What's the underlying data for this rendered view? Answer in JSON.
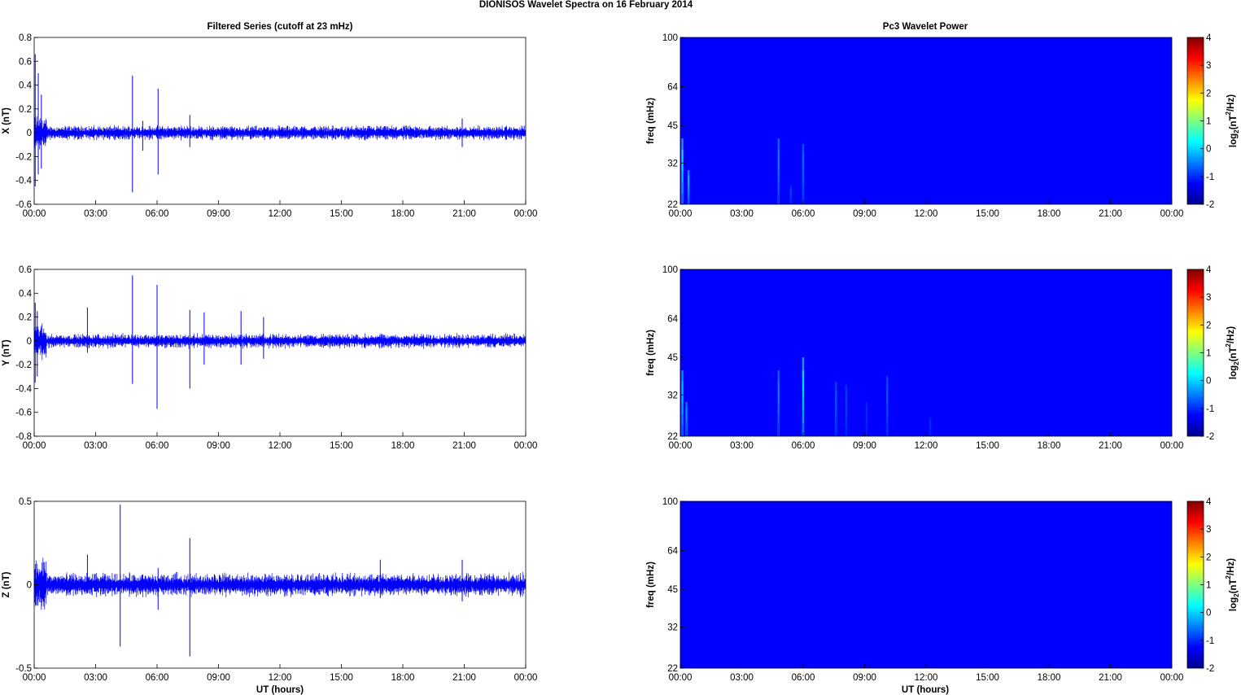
{
  "figure": {
    "suptitle": "DIONISOS Wavelet Spectra on 16 February  2014",
    "left_title": "Filtered Series (cutoff at 23 mHz)",
    "right_title": "Pc3 Wavelet Power",
    "xlabel": "UT (hours)"
  },
  "chart_data": [
    {
      "type": "line",
      "ylabel": "X (nT)",
      "x_ticks": [
        "00:00",
        "03:00",
        "06:00",
        "09:00",
        "12:00",
        "15:00",
        "18:00",
        "21:00",
        "00:00"
      ],
      "x_range_hours": [
        0,
        24
      ],
      "y_ticks": [
        "0.8",
        "0.6",
        "0.4",
        "0.2",
        "0",
        "-0.2",
        "-0.4",
        "-0.6"
      ],
      "ylim": [
        -0.6,
        0.8
      ],
      "color": "#0000ff",
      "noise_amplitude_nT": 0.03,
      "spikes": [
        {
          "t": 0.05,
          "min": -0.45,
          "max": 0.66
        },
        {
          "t": 0.2,
          "min": -0.35,
          "max": 0.5
        },
        {
          "t": 0.35,
          "min": -0.3,
          "max": 0.32
        },
        {
          "t": 4.8,
          "min": -0.5,
          "max": 0.48
        },
        {
          "t": 5.3,
          "min": -0.15,
          "max": 0.1
        },
        {
          "t": 6.05,
          "min": -0.35,
          "max": 0.37
        },
        {
          "t": 7.6,
          "min": -0.12,
          "max": 0.15
        },
        {
          "t": 20.9,
          "min": -0.12,
          "max": 0.12
        }
      ]
    },
    {
      "type": "line",
      "ylabel": "Y (nT)",
      "x_ticks": [
        "00:00",
        "03:00",
        "06:00",
        "09:00",
        "12:00",
        "15:00",
        "18:00",
        "21:00",
        "00:00"
      ],
      "x_range_hours": [
        0,
        24
      ],
      "y_ticks": [
        "0.6",
        "0.4",
        "0.2",
        "0",
        "-0.2",
        "-0.4",
        "-0.6",
        "-0.8"
      ],
      "ylim": [
        -0.8,
        0.6
      ],
      "color": "#0000ff",
      "noise_amplitude_nT": 0.03,
      "spikes": [
        {
          "t": 0.05,
          "min": -0.35,
          "max": 0.32
        },
        {
          "t": 0.15,
          "min": -0.3,
          "max": 0.25
        },
        {
          "t": 4.8,
          "min": -0.36,
          "max": 0.55
        },
        {
          "t": 6.0,
          "min": -0.57,
          "max": 0.47
        },
        {
          "t": 7.6,
          "min": -0.4,
          "max": 0.26
        },
        {
          "t": 8.3,
          "min": -0.2,
          "max": 0.24
        },
        {
          "t": 10.1,
          "min": -0.2,
          "max": 0.25
        },
        {
          "t": 11.2,
          "min": -0.15,
          "max": 0.2
        },
        {
          "t": 2.6,
          "min": -0.1,
          "max": 0.28
        }
      ]
    },
    {
      "type": "line",
      "ylabel": "Z (nT)",
      "x_ticks": [
        "00:00",
        "03:00",
        "06:00",
        "09:00",
        "12:00",
        "15:00",
        "18:00",
        "21:00",
        "00:00"
      ],
      "x_range_hours": [
        0,
        24
      ],
      "y_ticks": [
        "0.5",
        "0",
        "-0.5"
      ],
      "ylim": [
        -0.5,
        0.5
      ],
      "color": "#0000ff",
      "noise_amplitude_nT": 0.035,
      "spikes": [
        {
          "t": 4.2,
          "min": -0.37,
          "max": 0.48
        },
        {
          "t": 7.6,
          "min": -0.43,
          "max": 0.28
        },
        {
          "t": 2.6,
          "min": -0.05,
          "max": 0.18
        },
        {
          "t": 6.05,
          "min": -0.15,
          "max": 0.1
        },
        {
          "t": 16.9,
          "min": -0.08,
          "max": 0.15
        },
        {
          "t": 20.9,
          "min": -0.1,
          "max": 0.15
        }
      ]
    },
    {
      "type": "heatmap",
      "ylabel": "freq (mHz)",
      "y_ticks": [
        "100",
        "64",
        "45",
        "32",
        "22"
      ],
      "y_range_mHz": [
        22,
        100
      ],
      "y_scale": "log",
      "x_ticks": [
        "00:00",
        "03:00",
        "06:00",
        "09:00",
        "12:00",
        "15:00",
        "18:00",
        "21:00",
        "00:00"
      ],
      "colorbar_label": "log2(nT2/Hz)",
      "colorbar_ticks": [
        "4",
        "3",
        "2",
        "1",
        "0",
        "-1",
        "-2"
      ],
      "clim": [
        -2,
        4
      ],
      "background_value": -2,
      "bursts": [
        {
          "t": 0.1,
          "top_mHz": 40,
          "peak": 0.2
        },
        {
          "t": 0.4,
          "top_mHz": 30,
          "peak": -0.3
        },
        {
          "t": 4.8,
          "top_mHz": 40,
          "peak": -0.8
        },
        {
          "t": 5.4,
          "top_mHz": 26,
          "peak": -1.4
        },
        {
          "t": 6.0,
          "top_mHz": 38,
          "peak": -1.0
        }
      ]
    },
    {
      "type": "heatmap",
      "ylabel": "freq (mHz)",
      "y_ticks": [
        "100",
        "64",
        "45",
        "32",
        "22"
      ],
      "y_range_mHz": [
        22,
        100
      ],
      "y_scale": "log",
      "x_ticks": [
        "00:00",
        "03:00",
        "06:00",
        "09:00",
        "12:00",
        "15:00",
        "18:00",
        "21:00",
        "00:00"
      ],
      "colorbar_label": "log2(nT2/Hz)",
      "colorbar_ticks": [
        "4",
        "3",
        "2",
        "1",
        "0",
        "-1",
        "-2"
      ],
      "clim": [
        -2,
        4
      ],
      "background_value": -2,
      "bursts": [
        {
          "t": 0.1,
          "top_mHz": 40,
          "peak": -0.2
        },
        {
          "t": 0.3,
          "top_mHz": 30,
          "peak": -0.6
        },
        {
          "t": 4.8,
          "top_mHz": 40,
          "peak": -0.8
        },
        {
          "t": 6.0,
          "top_mHz": 45,
          "peak": 0.2
        },
        {
          "t": 7.6,
          "top_mHz": 36,
          "peak": -1.2
        },
        {
          "t": 8.1,
          "top_mHz": 35,
          "peak": -1.4
        },
        {
          "t": 10.1,
          "top_mHz": 38,
          "peak": -1.2
        },
        {
          "t": 9.1,
          "top_mHz": 30,
          "peak": -1.6
        },
        {
          "t": 12.2,
          "top_mHz": 26,
          "peak": -1.6
        }
      ]
    },
    {
      "type": "heatmap",
      "ylabel": "freq (mHz)",
      "y_ticks": [
        "100",
        "64",
        "45",
        "32",
        "22"
      ],
      "y_range_mHz": [
        22,
        100
      ],
      "y_scale": "log",
      "x_ticks": [
        "00:00",
        "03:00",
        "06:00",
        "09:00",
        "12:00",
        "15:00",
        "18:00",
        "21:00",
        "00:00"
      ],
      "colorbar_label": "log2(nT2/Hz)",
      "colorbar_ticks": [
        "4",
        "3",
        "2",
        "1",
        "0",
        "-1",
        "-2"
      ],
      "clim": [
        -2,
        4
      ],
      "background_value": -2,
      "bursts": []
    }
  ]
}
